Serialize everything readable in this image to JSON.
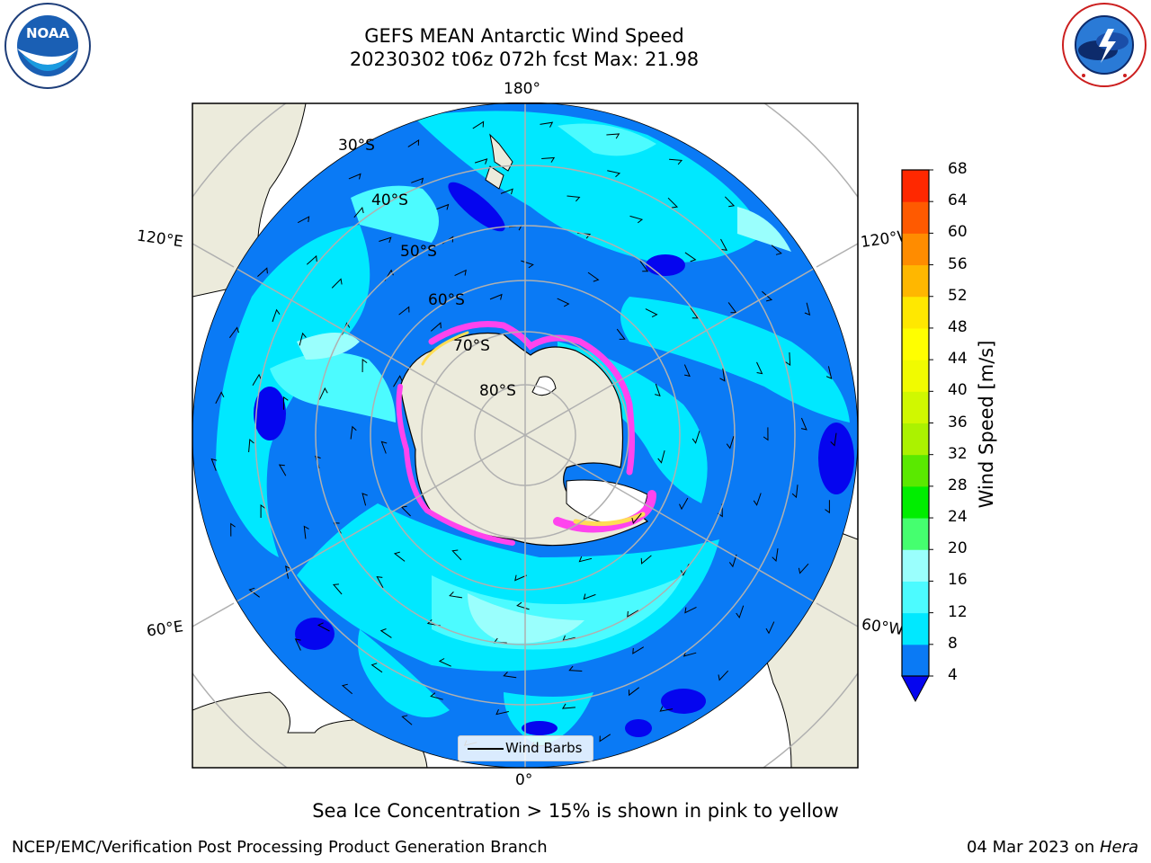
{
  "title": {
    "line1": "GEFS MEAN Antarctic Wind Speed",
    "line2": "20230302 t06z 072h fcst   Max: 21.98"
  },
  "logos": {
    "left": "noaa-logo",
    "right": "national-weather-service-logo",
    "noaa_text": "NOAA",
    "noaa_ring_text": "NATIONAL OCEANIC AND ATMOSPHERIC ADMINISTRATION · U.S. DEPARTMENT OF COMMERCE",
    "nws_ring_text": "NATIONAL WEATHER SERVICE"
  },
  "map": {
    "projection": "south-polar-stereographic",
    "lon_labels": {
      "top": "180°",
      "bottom": "0°",
      "upper_left": "120°E",
      "upper_right": "120°W",
      "lower_left": "60°E",
      "lower_right": "60°W"
    },
    "lat_labels": [
      "30°S",
      "40°S",
      "50°S",
      "60°S",
      "70°S",
      "80°S"
    ],
    "legend_label": "Wind Barbs",
    "colors": {
      "land": "#ecebdc",
      "ice_low": "#ff44ee",
      "ice_high": "#ffdd55"
    }
  },
  "colorbar": {
    "label": "Wind Speed [m/s]",
    "ticks": [
      "4",
      "8",
      "12",
      "16",
      "20",
      "24",
      "28",
      "32",
      "36",
      "40",
      "44",
      "48",
      "52",
      "56",
      "60",
      "64",
      "68"
    ],
    "colors": [
      "#0a7af5",
      "#00e8ff",
      "#4cfbff",
      "#9afffd",
      "#45ff6f",
      "#00ee00",
      "#5ae900",
      "#abf200",
      "#d0f800",
      "#f1fb00",
      "#ffff00",
      "#ffe800",
      "#ffb700",
      "#ff8c00",
      "#ff5a00",
      "#ff2800"
    ],
    "extend_color": "#0505ef"
  },
  "caption": "Sea Ice Concentration > 15% is shown in pink to yellow",
  "footer": {
    "left": "NCEP/EMC/Verification Post Processing Product Generation Branch",
    "right_date": "04 Mar 2023 on ",
    "right_host": "Hera"
  }
}
